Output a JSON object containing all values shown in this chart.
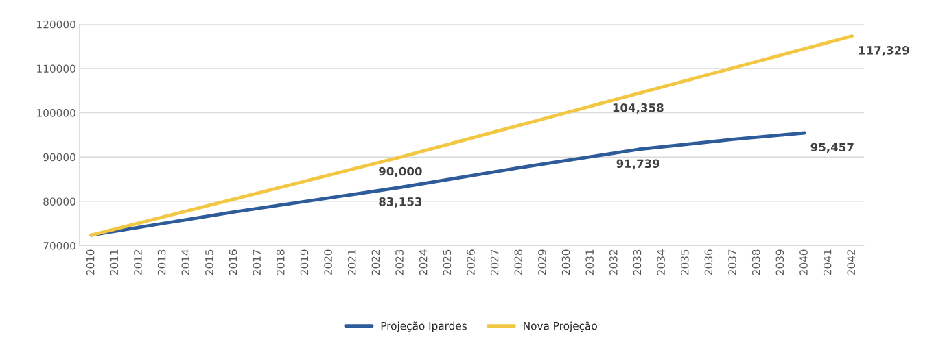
{
  "chart_data": {
    "type": "line",
    "series": [
      {
        "name": "Projeção Ipardes",
        "color": "#2e5c9a",
        "x": [
          2010,
          2016,
          2023,
          2028,
          2033,
          2037,
          2040
        ],
        "values": [
          72400,
          77600,
          83153,
          87600,
          91739,
          94000,
          95457
        ],
        "value_labels": [
          null,
          null,
          "83,153",
          null,
          "91,739",
          null,
          "95,457"
        ]
      },
      {
        "name": "Nova Projeção",
        "color": "#f2c744",
        "x": [
          2010,
          2016,
          2023,
          2033,
          2042
        ],
        "values": [
          72400,
          80500,
          90000,
          104358,
          117329
        ],
        "value_labels": [
          null,
          null,
          "90,000",
          "104,358",
          "117,329"
        ]
      }
    ],
    "xlim": [
      2009.5,
      2042.5
    ],
    "xticks": [
      2010,
      2011,
      2012,
      2013,
      2014,
      2015,
      2016,
      2017,
      2018,
      2019,
      2020,
      2021,
      2022,
      2023,
      2024,
      2025,
      2026,
      2027,
      2028,
      2029,
      2030,
      2031,
      2032,
      2033,
      2034,
      2035,
      2036,
      2037,
      2038,
      2039,
      2040,
      2041,
      2042
    ],
    "ylim": [
      70000,
      120000
    ],
    "yticks": [
      70000,
      80000,
      90000,
      100000,
      110000,
      120000
    ],
    "grid": "y",
    "legend": "bottom",
    "marker": "none",
    "line_style": "solid"
  }
}
